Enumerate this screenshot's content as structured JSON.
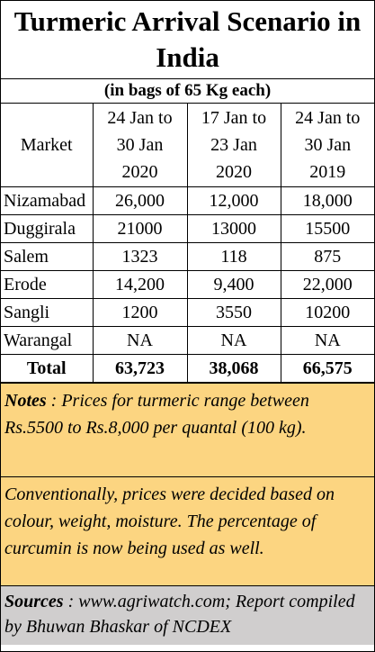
{
  "title": "Turmeric Arrival Scenario in India",
  "subtitle": "(in bags of 65 Kg each)",
  "table": {
    "header": {
      "market": "Market",
      "periods": [
        [
          "24 Jan to",
          "30 Jan",
          "2020"
        ],
        [
          "17 Jan to",
          "23 Jan",
          "2020"
        ],
        [
          "24 Jan to",
          "30 Jan",
          "2019"
        ]
      ]
    },
    "rows": [
      [
        "Nizamabad",
        "26,000",
        "12,000",
        "18,000"
      ],
      [
        "Duggirala",
        "21000",
        "13000",
        "15500"
      ],
      [
        "Salem",
        "1323",
        "118",
        "875"
      ],
      [
        "Erode",
        "14,200",
        "9,400",
        "22,000"
      ],
      [
        "Sangli",
        "1200",
        "3550",
        "10200"
      ],
      [
        "Warangal",
        "NA",
        "NA",
        "NA"
      ]
    ],
    "total": [
      "Total",
      "63,723",
      "38,068",
      "66,575"
    ]
  },
  "notes": {
    "label": "Notes",
    "text": ": Prices for turmeric range between Rs.5500 to Rs.8,000 per quantal (100 kg)."
  },
  "remark": "Conventionally, prices were decided based on colour, weight, moisture.  The percentage of curcumin is now being used as well.",
  "sources": {
    "label": "Sources",
    "text": ": www.agriwatch.com; Report compiled by Bhuwan Bhaskar of NCDEX"
  }
}
